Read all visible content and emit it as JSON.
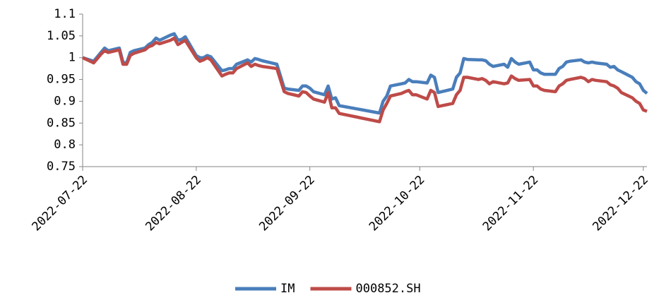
{
  "chart_data": {
    "type": "line",
    "x": [
      "2022-07-22",
      "2022-07-25",
      "2022-07-26",
      "2022-07-27",
      "2022-07-28",
      "2022-07-29",
      "2022-08-01",
      "2022-08-02",
      "2022-08-03",
      "2022-08-04",
      "2022-08-05",
      "2022-08-08",
      "2022-08-09",
      "2022-08-10",
      "2022-08-11",
      "2022-08-12",
      "2022-08-15",
      "2022-08-16",
      "2022-08-17",
      "2022-08-18",
      "2022-08-19",
      "2022-08-22",
      "2022-08-23",
      "2022-08-24",
      "2022-08-25",
      "2022-08-26",
      "2022-08-29",
      "2022-08-30",
      "2022-08-31",
      "2022-09-01",
      "2022-09-02",
      "2022-09-05",
      "2022-09-06",
      "2022-09-07",
      "2022-09-08",
      "2022-09-09",
      "2022-09-13",
      "2022-09-15",
      "2022-09-16",
      "2022-09-19",
      "2022-09-20",
      "2022-09-21",
      "2022-09-22",
      "2022-09-23",
      "2022-09-26",
      "2022-09-27",
      "2022-09-28",
      "2022-09-29",
      "2022-09-30",
      "2022-10-11",
      "2022-10-12",
      "2022-10-13",
      "2022-10-14",
      "2022-10-17",
      "2022-10-18",
      "2022-10-19",
      "2022-10-20",
      "2022-10-21",
      "2022-10-24",
      "2022-10-25",
      "2022-10-26",
      "2022-10-27",
      "2022-10-31",
      "2022-11-01",
      "2022-11-02",
      "2022-11-03",
      "2022-11-04",
      "2022-11-07",
      "2022-11-08",
      "2022-11-09",
      "2022-11-10",
      "2022-11-11",
      "2022-11-14",
      "2022-11-15",
      "2022-11-16",
      "2022-11-17",
      "2022-11-18",
      "2022-11-21",
      "2022-11-22",
      "2022-11-23",
      "2022-11-24",
      "2022-11-25",
      "2022-11-28",
      "2022-11-29",
      "2022-11-30",
      "2022-12-01",
      "2022-12-02",
      "2022-12-05",
      "2022-12-06",
      "2022-12-07",
      "2022-12-08",
      "2022-12-09",
      "2022-12-12",
      "2022-12-13",
      "2022-12-14",
      "2022-12-15",
      "2022-12-16",
      "2022-12-19",
      "2022-12-20",
      "2022-12-21",
      "2022-12-22",
      "2022-12-23"
    ],
    "series": [
      {
        "name": "IM",
        "color": "#4a7ebb",
        "values": [
          1.0,
          0.992,
          1.002,
          1.012,
          1.022,
          1.016,
          1.022,
          0.99,
          0.988,
          1.012,
          1.016,
          1.022,
          1.03,
          1.035,
          1.045,
          1.04,
          1.052,
          1.055,
          1.04,
          1.042,
          1.048,
          1.005,
          1.0,
          1.0,
          1.005,
          1.002,
          0.97,
          0.972,
          0.975,
          0.975,
          0.985,
          0.995,
          0.99,
          0.998,
          0.996,
          0.993,
          0.985,
          0.93,
          0.928,
          0.925,
          0.935,
          0.935,
          0.93,
          0.922,
          0.915,
          0.935,
          0.905,
          0.908,
          0.89,
          0.873,
          0.9,
          0.912,
          0.935,
          0.94,
          0.942,
          0.95,
          0.945,
          0.945,
          0.942,
          0.96,
          0.955,
          0.92,
          0.928,
          0.955,
          0.965,
          0.998,
          0.996,
          0.995,
          0.995,
          0.993,
          0.985,
          0.98,
          0.985,
          0.978,
          0.998,
          0.99,
          0.985,
          0.99,
          0.972,
          0.972,
          0.965,
          0.962,
          0.962,
          0.975,
          0.98,
          0.99,
          0.992,
          0.995,
          0.99,
          0.988,
          0.99,
          0.988,
          0.985,
          0.978,
          0.98,
          0.972,
          0.968,
          0.955,
          0.945,
          0.94,
          0.925,
          0.918
        ]
      },
      {
        "name": "000852.SH",
        "color": "#be4b48",
        "values": [
          1.0,
          0.988,
          0.998,
          1.008,
          1.016,
          1.012,
          1.018,
          0.985,
          0.985,
          1.005,
          1.01,
          1.018,
          1.025,
          1.028,
          1.035,
          1.032,
          1.04,
          1.045,
          1.03,
          1.035,
          1.04,
          1.0,
          0.992,
          0.995,
          1.0,
          0.995,
          0.958,
          0.962,
          0.965,
          0.965,
          0.975,
          0.988,
          0.98,
          0.985,
          0.982,
          0.98,
          0.975,
          0.922,
          0.918,
          0.912,
          0.922,
          0.92,
          0.912,
          0.905,
          0.898,
          0.92,
          0.885,
          0.885,
          0.872,
          0.853,
          0.88,
          0.895,
          0.912,
          0.918,
          0.922,
          0.925,
          0.915,
          0.915,
          0.905,
          0.925,
          0.92,
          0.888,
          0.895,
          0.915,
          0.925,
          0.955,
          0.955,
          0.95,
          0.952,
          0.948,
          0.94,
          0.945,
          0.94,
          0.942,
          0.958,
          0.952,
          0.948,
          0.95,
          0.935,
          0.935,
          0.928,
          0.925,
          0.922,
          0.935,
          0.94,
          0.948,
          0.95,
          0.955,
          0.952,
          0.945,
          0.95,
          0.948,
          0.945,
          0.938,
          0.935,
          0.93,
          0.92,
          0.908,
          0.9,
          0.895,
          0.88,
          0.877
        ]
      }
    ],
    "xlim": [
      "2022-07-22",
      "2022-12-23"
    ],
    "xticks": [
      "2022-07-22",
      "2022-08-22",
      "2022-09-22",
      "2022-10-22",
      "2022-11-22",
      "2022-12-22"
    ],
    "ylim": [
      0.75,
      1.1
    ],
    "yticks": [
      0.75,
      0.8,
      0.85,
      0.9,
      0.95,
      1,
      1.05,
      1.1
    ],
    "grid": false,
    "legend": "bottom"
  }
}
